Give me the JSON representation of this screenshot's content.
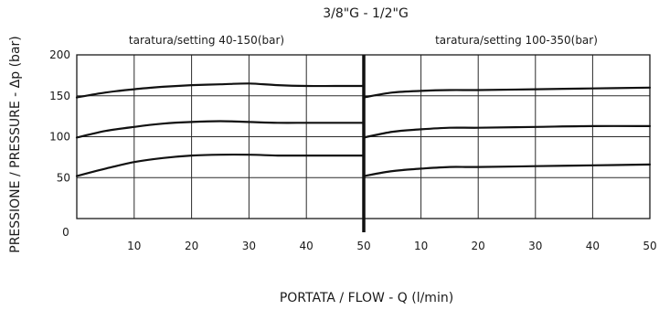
{
  "chart_data": {
    "type": "line",
    "title": "3/8\"G - 1/2\"G",
    "xlabel": "PORTATA / FLOW - Q (l/min)",
    "ylabel": "PRESSIONE / PRESSURE - Δp (bar)",
    "origin_label": "0",
    "y_ticks": [
      50,
      100,
      150,
      200
    ],
    "grid": true,
    "panels": [
      {
        "subtitle": "taratura/setting 40-150(bar)",
        "xlim": [
          0,
          50
        ],
        "ylim": [
          0,
          200
        ],
        "x_ticks": [
          10,
          20,
          30,
          40,
          50
        ],
        "series": [
          {
            "x": [
              0,
              5,
              10,
              15,
              20,
              25,
              30,
              35,
              40,
              45,
              50
            ],
            "y": [
              148,
              154,
              158,
              161,
              163,
              164,
              165,
              163,
              162,
              162,
              162
            ]
          },
          {
            "x": [
              0,
              5,
              10,
              15,
              20,
              25,
              30,
              35,
              40,
              45,
              50
            ],
            "y": [
              99,
              107,
              112,
              116,
              118,
              119,
              118,
              117,
              117,
              117,
              117
            ]
          },
          {
            "x": [
              0,
              5,
              10,
              15,
              20,
              25,
              30,
              35,
              40,
              45,
              50
            ],
            "y": [
              52,
              61,
              69,
              74,
              77,
              78,
              78,
              77,
              77,
              77,
              77
            ]
          }
        ]
      },
      {
        "subtitle": "taratura/setting 100-350(bar)",
        "xlim": [
          0,
          50
        ],
        "ylim": [
          0,
          200
        ],
        "x_ticks": [
          10,
          20,
          30,
          40,
          50
        ],
        "series": [
          {
            "x": [
              0,
              5,
              10,
              15,
              20,
              30,
              40,
              50
            ],
            "y": [
              148,
              154,
              156,
              157,
              157,
              158,
              159,
              160
            ]
          },
          {
            "x": [
              0,
              5,
              10,
              15,
              20,
              30,
              40,
              50
            ],
            "y": [
              99,
              106,
              109,
              111,
              111,
              112,
              113,
              113
            ]
          },
          {
            "x": [
              0,
              5,
              10,
              15,
              20,
              30,
              40,
              50
            ],
            "y": [
              52,
              58,
              61,
              63,
              63,
              64,
              65,
              66
            ]
          }
        ]
      }
    ]
  }
}
